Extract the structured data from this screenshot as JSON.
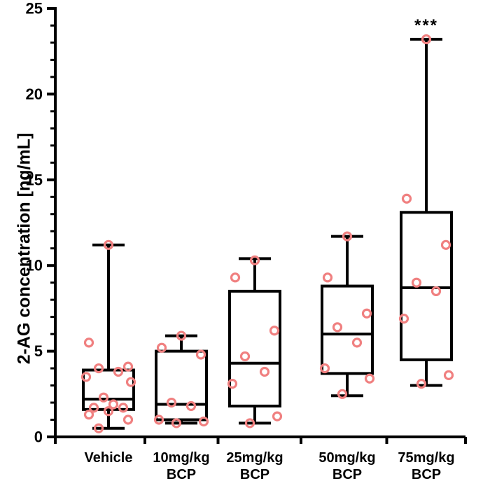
{
  "chart_data": {
    "type": "box",
    "ylabel": "2-AG concentration [ng/mL]",
    "xlabel": "",
    "ylim": [
      0,
      25
    ],
    "yticks": [
      "0",
      "5",
      "10",
      "15",
      "20",
      "25"
    ],
    "grid": false,
    "point_color": "#f08080",
    "categories": [
      {
        "label_lines": [
          "Vehicle"
        ],
        "whisker_min": 0.5,
        "q1": 1.6,
        "median": 2.2,
        "q3": 3.9,
        "whisker_max": 11.2,
        "points": [
          11.2,
          5.5,
          4.1,
          4.0,
          3.8,
          3.5,
          3.2,
          2.3,
          1.9,
          1.7,
          1.7,
          1.5,
          1.3,
          1.0,
          0.5
        ],
        "annotation": ""
      },
      {
        "label_lines": [
          "10mg/kg",
          "BCP"
        ],
        "whisker_min": 0.8,
        "q1": 1.0,
        "median": 1.9,
        "q3": 5.0,
        "whisker_max": 5.9,
        "points": [
          5.9,
          5.2,
          4.8,
          2.0,
          1.8,
          1.0,
          0.9,
          0.8
        ],
        "annotation": ""
      },
      {
        "label_lines": [
          "25mg/kg",
          "BCP"
        ],
        "whisker_min": 0.8,
        "q1": 1.8,
        "median": 4.3,
        "q3": 8.5,
        "whisker_max": 10.4,
        "points": [
          10.3,
          9.3,
          6.2,
          4.7,
          3.8,
          3.1,
          1.2,
          0.8
        ],
        "annotation": ""
      },
      {
        "label_lines": [
          "50mg/kg",
          "BCP"
        ],
        "whisker_min": 2.4,
        "q1": 3.7,
        "median": 6.0,
        "q3": 8.8,
        "whisker_max": 11.7,
        "points": [
          11.7,
          9.3,
          7.2,
          6.4,
          5.5,
          4.0,
          3.4,
          2.5
        ],
        "annotation": ""
      },
      {
        "label_lines": [
          "75mg/kg",
          "BCP"
        ],
        "whisker_min": 3.0,
        "q1": 4.5,
        "median": 8.7,
        "q3": 13.1,
        "whisker_max": 23.2,
        "points": [
          23.2,
          13.9,
          11.2,
          9.0,
          8.5,
          6.9,
          3.6,
          3.1
        ],
        "annotation": "***"
      }
    ]
  }
}
